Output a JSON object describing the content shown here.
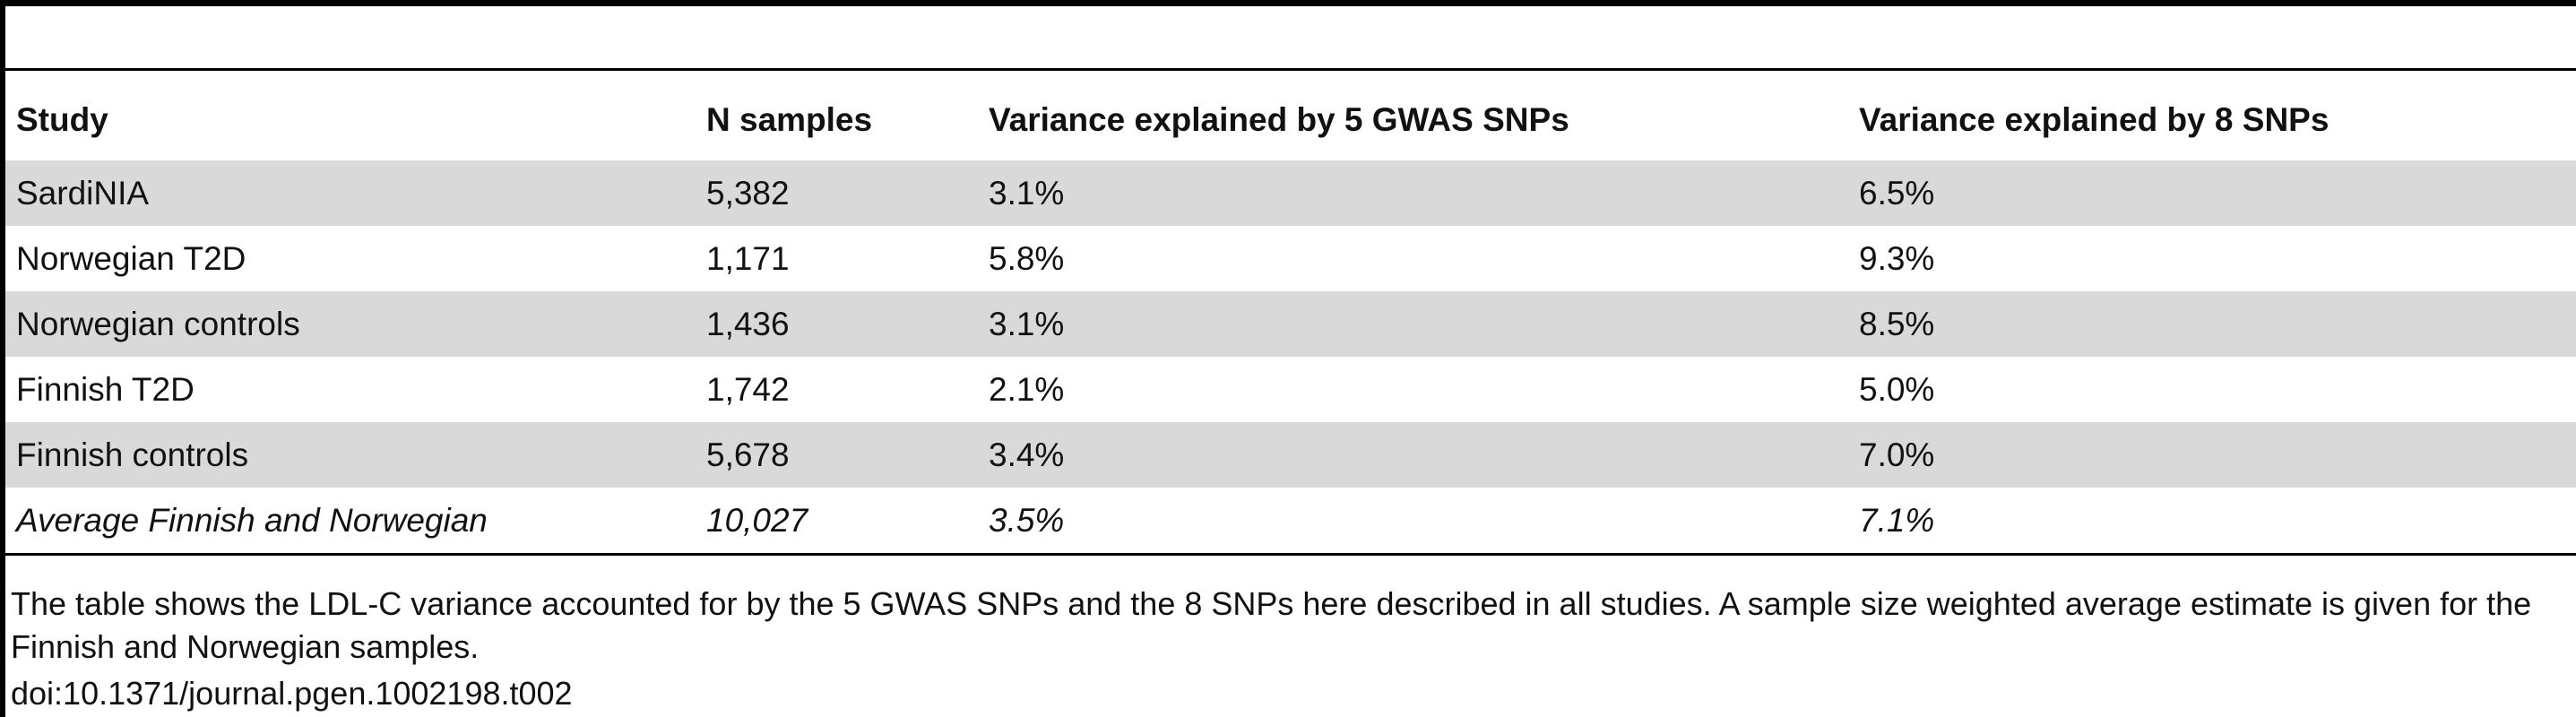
{
  "table": {
    "headers": [
      "Study",
      "N samples",
      "Variance explained by 5 GWAS SNPs",
      "Variance explained by 8 SNPs"
    ],
    "rows": [
      [
        "SardiNIA",
        "5,382",
        "3.1%",
        "6.5%"
      ],
      [
        "Norwegian T2D",
        "1,171",
        "5.8%",
        "9.3%"
      ],
      [
        "Norwegian controls",
        "1,436",
        "3.1%",
        "8.5%"
      ],
      [
        "Finnish T2D",
        "1,742",
        "2.1%",
        "5.0%"
      ],
      [
        "Finnish controls",
        "5,678",
        "3.4%",
        "7.0%"
      ],
      [
        "Average Finnish and Norwegian",
        "10,027",
        "3.5%",
        "7.1%"
      ]
    ]
  },
  "caption": "The table shows the LDL-C variance accounted for by the 5 GWAS SNPs and the 8 SNPs here described in all studies. A sample size weighted average estimate is given for the Finnish and Norwegian samples.",
  "doi": "doi:10.1371/journal.pgen.1002198.t002",
  "colors": {
    "row_shade": "#d9d9d9",
    "rule": "#000000"
  }
}
